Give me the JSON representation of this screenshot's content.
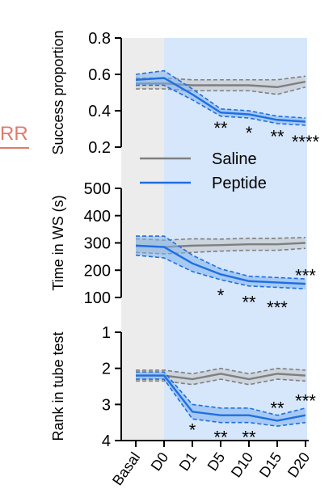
{
  "edge_label": "RR",
  "chart_data": {
    "type": "line",
    "x_categories": [
      "Basal",
      "D0",
      "D1",
      "D5",
      "D10",
      "D15",
      "D20"
    ],
    "legend": {
      "position": "inside-middle",
      "entries": [
        "Saline",
        "Peptide"
      ]
    },
    "colors": {
      "saline": "#7f7f7f",
      "saline_band": "#c4c4c4",
      "peptide": "#1f6fe0",
      "peptide_band": "#7fb2ee",
      "treatment_shade": "#d6e6fb",
      "basal_shade": "#ececec"
    },
    "panels": [
      {
        "id": "success",
        "ylabel": "Success proportion",
        "ylim": [
          0.2,
          0.8
        ],
        "yticks": [
          "0.2",
          "0.4",
          "0.6",
          "0.8"
        ],
        "inverted": false,
        "series": [
          {
            "name": "Saline",
            "values": [
              0.55,
              0.55,
              0.54,
              0.54,
              0.54,
              0.53,
              0.56
            ],
            "sem": [
              0.03,
              0.03,
              0.03,
              0.03,
              0.03,
              0.04,
              0.03
            ]
          },
          {
            "name": "Peptide",
            "values": [
              0.57,
              0.58,
              0.49,
              0.39,
              0.38,
              0.35,
              0.34
            ],
            "sem": [
              0.03,
              0.04,
              0.03,
              0.02,
              0.02,
              0.02,
              0.02
            ]
          }
        ],
        "annotations": [
          {
            "x": "D5",
            "text": "**",
            "y": 0.315
          },
          {
            "x": "D10",
            "text": "*",
            "y": 0.29
          },
          {
            "x": "D15",
            "text": "**",
            "y": 0.27
          },
          {
            "x": "D20",
            "text": "****",
            "y": 0.24
          }
        ]
      },
      {
        "id": "time_ws",
        "ylabel": "Time in WS (s)",
        "ylim": [
          100,
          500
        ],
        "yticks": [
          "100",
          "200",
          "300",
          "400",
          "500"
        ],
        "inverted": false,
        "series": [
          {
            "name": "Saline",
            "values": [
              290,
              285,
              290,
              292,
              295,
              295,
              300
            ],
            "sem": [
              25,
              25,
              25,
              22,
              22,
              22,
              20
            ]
          },
          {
            "name": "Peptide",
            "values": [
              290,
              285,
              225,
              185,
              160,
              155,
              150
            ],
            "sem": [
              35,
              40,
              30,
              20,
              18,
              18,
              18
            ]
          }
        ],
        "annotations": [
          {
            "x": "D5",
            "text": "*",
            "y": 115
          },
          {
            "x": "D10",
            "text": "**",
            "y": 90
          },
          {
            "x": "D15",
            "text": "***",
            "y": 70
          },
          {
            "x": "D20",
            "text": "***",
            "y": 188
          }
        ]
      },
      {
        "id": "rank",
        "ylabel": "Rank in tube test",
        "ylim": [
          1,
          4
        ],
        "yticks": [
          "1",
          "2",
          "3",
          "4"
        ],
        "inverted": true,
        "series": [
          {
            "name": "Saline",
            "values": [
              2.2,
              2.2,
              2.3,
              2.15,
              2.3,
              2.15,
              2.2
            ],
            "sem": [
              0.15,
              0.15,
              0.15,
              0.15,
              0.15,
              0.15,
              0.15
            ]
          },
          {
            "name": "Peptide",
            "values": [
              2.2,
              2.2,
              3.2,
              3.3,
              3.3,
              3.45,
              3.3
            ],
            "sem": [
              0.1,
              0.1,
              0.2,
              0.2,
              0.2,
              0.15,
              0.2
            ]
          }
        ],
        "annotations": [
          {
            "x": "D1",
            "text": "*",
            "y": 3.65
          },
          {
            "x": "D5",
            "text": "**",
            "y": 3.85
          },
          {
            "x": "D10",
            "text": "**",
            "y": 3.85
          },
          {
            "x": "D15",
            "text": "**",
            "y": 3.05
          },
          {
            "x": "D20",
            "text": "***",
            "y": 2.85
          }
        ]
      }
    ]
  }
}
